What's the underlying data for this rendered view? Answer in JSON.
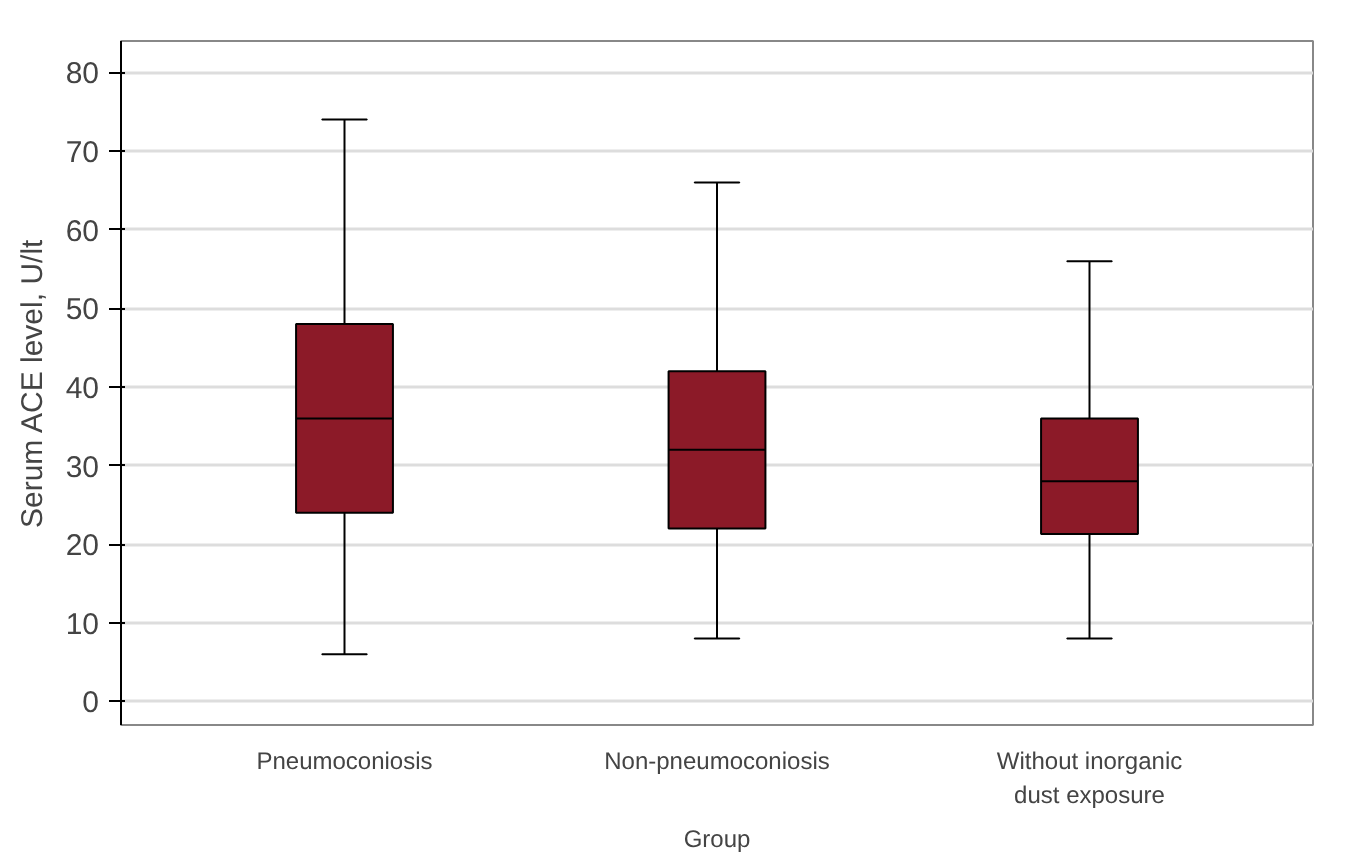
{
  "chart_data": {
    "type": "box",
    "xlabel": "Group",
    "ylabel": "Serum ACE level, U/lt",
    "categories": [
      "Pneumoconiosis",
      "Non-pneumoconiosis",
      "Without inorganic\ndust exposure"
    ],
    "series": [
      {
        "color": "#8c1a28",
        "boxes": [
          {
            "low": 6,
            "q1": 24,
            "median": 36,
            "q3": 48,
            "high": 74
          },
          {
            "low": 8,
            "q1": 22,
            "median": 32,
            "q3": 42,
            "high": 66
          },
          {
            "low": 8,
            "q1": 21.3,
            "median": 28,
            "q3": 36,
            "high": 56
          }
        ]
      }
    ],
    "ylim": [
      -3,
      84
    ],
    "yticks": [
      0,
      10,
      20,
      30,
      40,
      50,
      60,
      70,
      80
    ],
    "grid": "y"
  }
}
